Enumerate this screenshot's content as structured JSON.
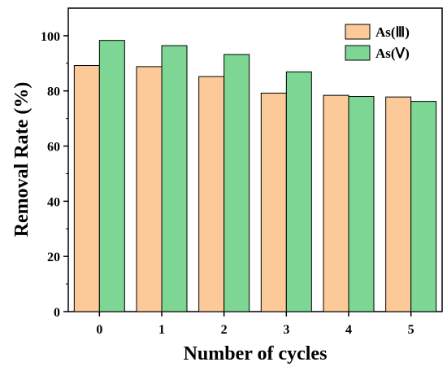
{
  "chart_data": {
    "type": "bar",
    "xlabel": "Number of cycles",
    "ylabel": "Removal Rate (%)",
    "categories": [
      "0",
      "1",
      "2",
      "3",
      "4",
      "5"
    ],
    "series": [
      {
        "name": "As(Ⅲ)",
        "values": [
          89.2,
          88.8,
          85.2,
          79.2,
          78.4,
          77.8
        ],
        "color": "#fcca98"
      },
      {
        "name": "As(Ⅴ)",
        "values": [
          98.3,
          96.4,
          93.2,
          86.9,
          78.0,
          76.2
        ],
        "color": "#7dd694"
      }
    ],
    "ylim": [
      0,
      110
    ],
    "yticks": [
      0,
      20,
      40,
      60,
      80,
      100
    ],
    "legend_position": "top-right",
    "grid": false
  }
}
